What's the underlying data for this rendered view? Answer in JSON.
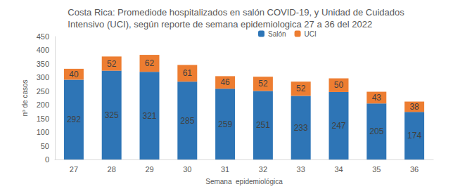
{
  "chart_data": {
    "type": "bar",
    "title": "Costa Rica: Promediode hospitalizados en salón COVID-19, y Unidad de Cuidados\nIntensivo (UCI), según reporte de semana epidemiologica 27 a 36 del 2022",
    "x_label": "Semana  epidemiológica",
    "y_label": "nº de casos",
    "categories": [
      "27",
      "28",
      "29",
      "30",
      "31",
      "32",
      "33",
      "34",
      "35",
      "36"
    ],
    "series": [
      {
        "name": "Salón",
        "color": "#2e75b6",
        "values": [
          292,
          325,
          321,
          285,
          259,
          251,
          233,
          247,
          205,
          174
        ]
      },
      {
        "name": "UCI",
        "color": "#ed7d31",
        "values": [
          40,
          52,
          62,
          61,
          46,
          52,
          52,
          50,
          43,
          38
        ]
      }
    ],
    "ylim": [
      0,
      450
    ],
    "yticks": [
      0,
      50,
      100,
      150,
      200,
      250,
      300,
      350,
      400,
      450
    ],
    "stacked": true,
    "data_labels": true,
    "grid": false,
    "legend": "top"
  }
}
